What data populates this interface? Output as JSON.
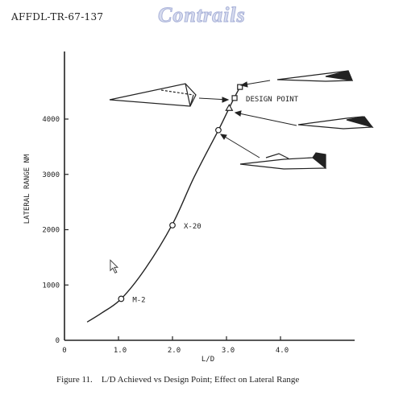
{
  "report_id": "AFFDL-TR-67-137",
  "watermark": "Contrails",
  "caption": {
    "figure": "Figure 11.",
    "text": "L/D Achieved vs Design Point; Effect on Lateral Range"
  },
  "chart_data": {
    "type": "line",
    "title": "",
    "xlabel": "L/D",
    "ylabel": "LATERAL RANGE NM",
    "xlim": [
      0,
      4.0
    ],
    "ylim": [
      0,
      4000
    ],
    "x_ticks": [
      0,
      1.0,
      2.0,
      3.0,
      4.0
    ],
    "x_tick_labels": [
      "0",
      "1.0",
      "2.0",
      "3.0",
      "4.0"
    ],
    "y_ticks": [
      0,
      1000,
      2000,
      3000,
      4000
    ],
    "y_tick_labels": [
      "0",
      "1000",
      "2000",
      "3000",
      "4000"
    ],
    "grid": false,
    "curve": {
      "x": [
        0.42,
        0.7,
        1.05,
        1.5,
        2.0,
        2.4,
        2.85,
        3.1,
        3.25
      ],
      "y": [
        330,
        500,
        750,
        1300,
        2100,
        2950,
        3800,
        4300,
        4580
      ]
    },
    "points": [
      {
        "x": 1.05,
        "y": 750,
        "marker": "circle",
        "label": "M-2"
      },
      {
        "x": 2.0,
        "y": 2080,
        "marker": "circle",
        "label": "X-20"
      },
      {
        "x": 2.85,
        "y": 3800,
        "marker": "circle",
        "label": ""
      },
      {
        "x": 3.05,
        "y": 4200,
        "marker": "triangle",
        "label": ""
      },
      {
        "x": 3.15,
        "y": 4380,
        "marker": "square",
        "label": "DESIGN POINT"
      },
      {
        "x": 3.25,
        "y": 4580,
        "marker": "square",
        "label": ""
      }
    ],
    "cursor": {
      "x": 0.85,
      "y": 1450
    }
  }
}
